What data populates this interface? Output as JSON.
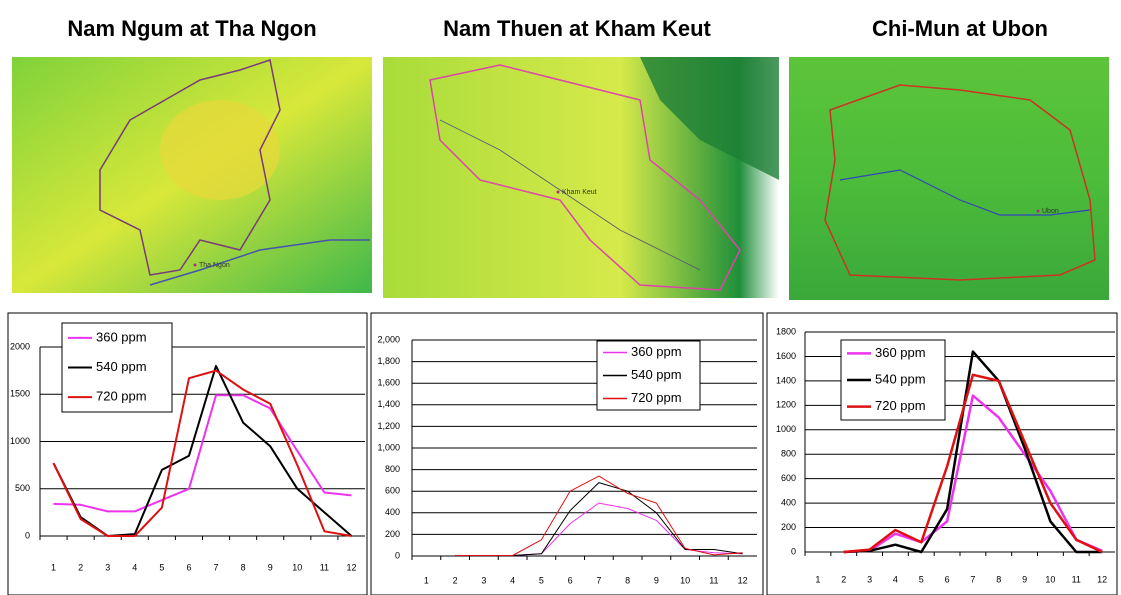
{
  "chart_data": [
    {
      "type": "line",
      "title": "Nam Ngum at Tha Ngon",
      "map_label": "Tha Ngon",
      "categories": [
        "1",
        "2",
        "3",
        "4",
        "5",
        "6",
        "7",
        "8",
        "9",
        "10",
        "11",
        "12"
      ],
      "ylim": [
        0,
        2000
      ],
      "yticks": [
        0,
        500,
        1000,
        1500,
        2000
      ],
      "grid": true,
      "legend": "upper left",
      "series": [
        {
          "name": "360 ppm",
          "color": "#ee33ee",
          "values": [
            340,
            330,
            260,
            260,
            380,
            500,
            1490,
            1490,
            1350,
            900,
            460,
            430
          ]
        },
        {
          "name": "540 ppm",
          "color": "#000000",
          "values": [
            770,
            200,
            0,
            20,
            700,
            850,
            1800,
            1200,
            950,
            500,
            250,
            0
          ]
        },
        {
          "name": "720 ppm",
          "color": "#dd1111",
          "values": [
            770,
            180,
            0,
            0,
            300,
            1670,
            1750,
            1550,
            1400,
            750,
            50,
            0
          ]
        }
      ]
    },
    {
      "type": "line",
      "title": "Nam Thuen at Kham Keut",
      "map_label": "Kham Keut",
      "categories": [
        "1",
        "2",
        "3",
        "4",
        "5",
        "6",
        "7",
        "8",
        "9",
        "10",
        "11",
        "12"
      ],
      "ylim": [
        0,
        2000
      ],
      "yticks": [
        0,
        200,
        400,
        600,
        800,
        {
          "value": 1000,
          "label": "1,000"
        },
        {
          "value": 1200,
          "label": "1,200"
        },
        {
          "value": 1400,
          "label": "1,400"
        },
        {
          "value": 1600,
          "label": "1,600"
        },
        {
          "value": 1800,
          "label": "1,800"
        },
        {
          "value": 2000,
          "label": "2,000"
        }
      ],
      "grid": true,
      "legend": "upper right",
      "series": [
        {
          "name": "360 ppm",
          "color": "#ee33ee",
          "values": [
            null,
            5,
            5,
            5,
            20,
            300,
            490,
            440,
            330,
            60,
            30,
            20
          ]
        },
        {
          "name": "540 ppm",
          "color": "#000000",
          "values": [
            null,
            5,
            5,
            5,
            20,
            420,
            680,
            600,
            400,
            60,
            60,
            20
          ]
        },
        {
          "name": "720 ppm",
          "color": "#dd1111",
          "values": [
            null,
            5,
            5,
            5,
            150,
            600,
            740,
            580,
            490,
            70,
            10,
            30
          ]
        }
      ]
    },
    {
      "type": "line",
      "title": "Chi-Mun at Ubon",
      "map_label": "Ubon",
      "categories": [
        "1",
        "2",
        "3",
        "4",
        "5",
        "6",
        "7",
        "8",
        "9",
        "10",
        "11",
        "12"
      ],
      "ylim": [
        0,
        1800
      ],
      "yticks": [
        0,
        200,
        400,
        600,
        800,
        1000,
        1200,
        1400,
        1600,
        1800
      ],
      "grid": true,
      "legend": "upper left",
      "series": [
        {
          "name": "360 ppm",
          "color": "#ee33ee",
          "values": [
            null,
            0,
            10,
            150,
            80,
            250,
            1280,
            1100,
            800,
            500,
            100,
            10
          ]
        },
        {
          "name": "540 ppm",
          "color": "#000000",
          "values": [
            null,
            0,
            10,
            60,
            0,
            350,
            1640,
            1400,
            850,
            250,
            0,
            0
          ]
        },
        {
          "name": "720 ppm",
          "color": "#dd1111",
          "values": [
            null,
            0,
            20,
            180,
            80,
            700,
            1450,
            1400,
            900,
            400,
            100,
            0
          ]
        }
      ]
    }
  ]
}
